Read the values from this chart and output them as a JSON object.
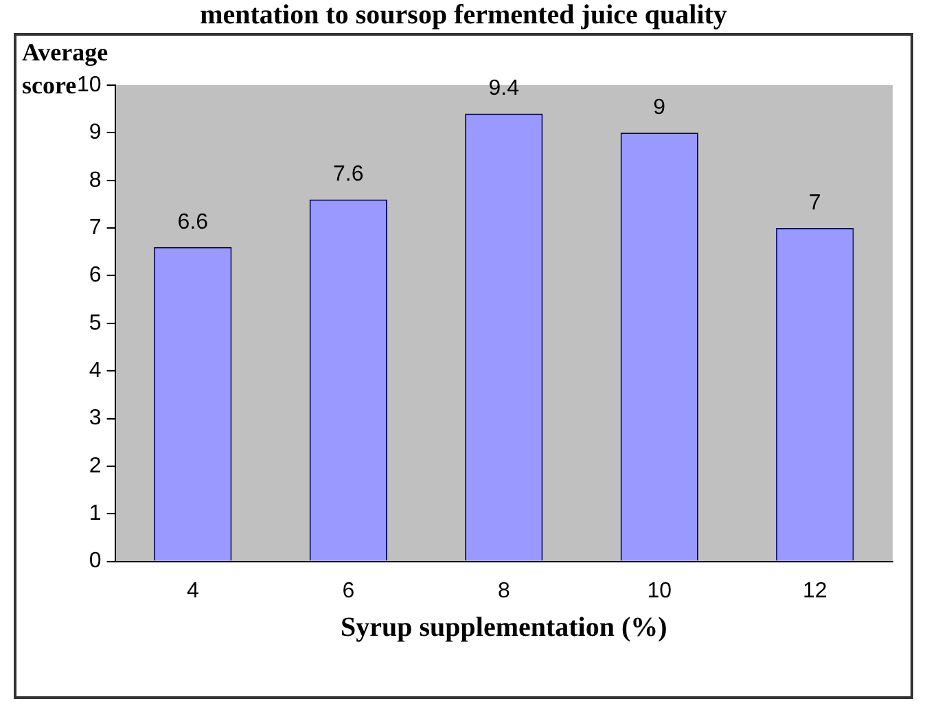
{
  "chart_data": {
    "type": "bar",
    "title": "mentation to soursop fermented juice quality",
    "xlabel": "Syrup supplementation (%)",
    "ylabel": "Average score",
    "categories": [
      "4",
      "6",
      "8",
      "10",
      "12"
    ],
    "values": [
      6.6,
      7.6,
      9.4,
      9,
      7
    ],
    "color": "#9999ff",
    "ylim": [
      0,
      10
    ],
    "yticks": [
      0,
      1,
      2,
      3,
      4,
      5,
      6,
      7,
      8,
      9,
      10
    ],
    "grid": false,
    "legend": false,
    "data_labels": true
  }
}
